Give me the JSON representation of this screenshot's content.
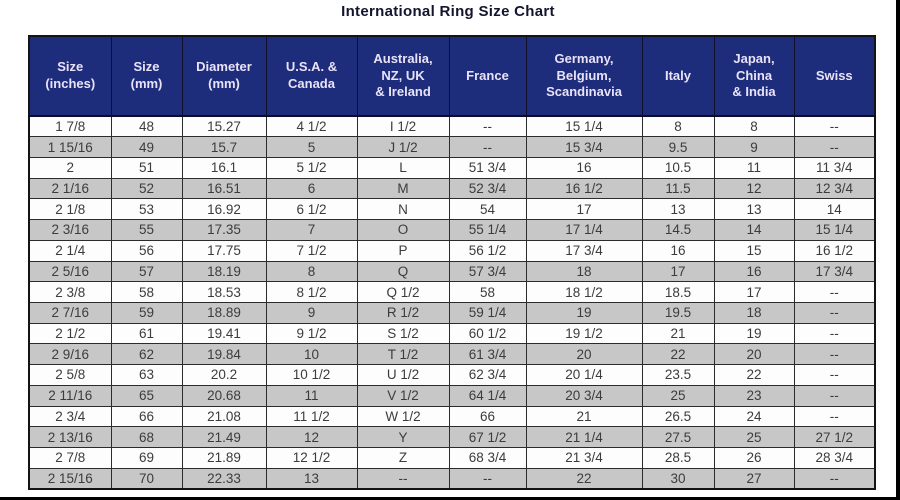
{
  "page": {
    "title": "International Ring Size Chart"
  },
  "colors": {
    "header_bg": "#1e2c7c",
    "header_text": "#e9e3f8",
    "row_bg": "#fdfdfd",
    "row_alt_bg": "#c7c7c7",
    "border": "#2b2b2b",
    "title_text": "#14142e"
  },
  "chart_data": {
    "type": "table",
    "title": "International Ring Size Chart",
    "columns": [
      "Size\n(inches)",
      "Size\n(mm)",
      "Diameter\n(mm)",
      "U.S.A. &\nCanada",
      "Australia,\nNZ, UK\n& Ireland",
      "France",
      "Germany,\nBelgium,\nScandinavia",
      "Italy",
      "Japan,\nChina\n& India",
      "Swiss"
    ],
    "rows": [
      [
        "1 7/8",
        "48",
        "15.27",
        "4 1/2",
        "I 1/2",
        "--",
        "15 1/4",
        "8",
        "8",
        "--"
      ],
      [
        "1 15/16",
        "49",
        "15.7",
        "5",
        "J 1/2",
        "--",
        "15 3/4",
        "9.5",
        "9",
        "--"
      ],
      [
        "2",
        "51",
        "16.1",
        "5 1/2",
        "L",
        "51 3/4",
        "16",
        "10.5",
        "11",
        "11 3/4"
      ],
      [
        "2 1/16",
        "52",
        "16.51",
        "6",
        "M",
        "52 3/4",
        "16 1/2",
        "11.5",
        "12",
        "12 3/4"
      ],
      [
        "2 1/8",
        "53",
        "16.92",
        "6 1/2",
        "N",
        "54",
        "17",
        "13",
        "13",
        "14"
      ],
      [
        "2 3/16",
        "55",
        "17.35",
        "7",
        "O",
        "55 1/4",
        "17 1/4",
        "14.5",
        "14",
        "15 1/4"
      ],
      [
        "2 1/4",
        "56",
        "17.75",
        "7 1/2",
        "P",
        "56 1/2",
        "17 3/4",
        "16",
        "15",
        "16 1/2"
      ],
      [
        "2 5/16",
        "57",
        "18.19",
        "8",
        "Q",
        "57 3/4",
        "18",
        "17",
        "16",
        "17 3/4"
      ],
      [
        "2 3/8",
        "58",
        "18.53",
        "8 1/2",
        "Q 1/2",
        "58",
        "18 1/2",
        "18.5",
        "17",
        "--"
      ],
      [
        "2 7/16",
        "59",
        "18.89",
        "9",
        "R 1/2",
        "59 1/4",
        "19",
        "19.5",
        "18",
        "--"
      ],
      [
        "2 1/2",
        "61",
        "19.41",
        "9 1/2",
        "S 1/2",
        "60 1/2",
        "19 1/2",
        "21",
        "19",
        "--"
      ],
      [
        "2 9/16",
        "62",
        "19.84",
        "10",
        "T 1/2",
        "61 3/4",
        "20",
        "22",
        "20",
        "--"
      ],
      [
        "2 5/8",
        "63",
        "20.2",
        "10 1/2",
        "U 1/2",
        "62 3/4",
        "20 1/4",
        "23.5",
        "22",
        "--"
      ],
      [
        "2 11/16",
        "65",
        "20.68",
        "11",
        "V 1/2",
        "64 1/4",
        "20 3/4",
        "25",
        "23",
        "--"
      ],
      [
        "2 3/4",
        "66",
        "21.08",
        "11 1/2",
        "W 1/2",
        "66",
        "21",
        "26.5",
        "24",
        "--"
      ],
      [
        "2 13/16",
        "68",
        "21.49",
        "12",
        "Y",
        "67 1/2",
        "21 1/4",
        "27.5",
        "25",
        "27 1/2"
      ],
      [
        "2 7/8",
        "69",
        "21.89",
        "12 1/2",
        "Z",
        "68 3/4",
        "21 3/4",
        "28.5",
        "26",
        "28 3/4"
      ],
      [
        "2 15/16",
        "70",
        "22.33",
        "13",
        "--",
        "--",
        "22",
        "30",
        "27",
        "--"
      ]
    ]
  }
}
